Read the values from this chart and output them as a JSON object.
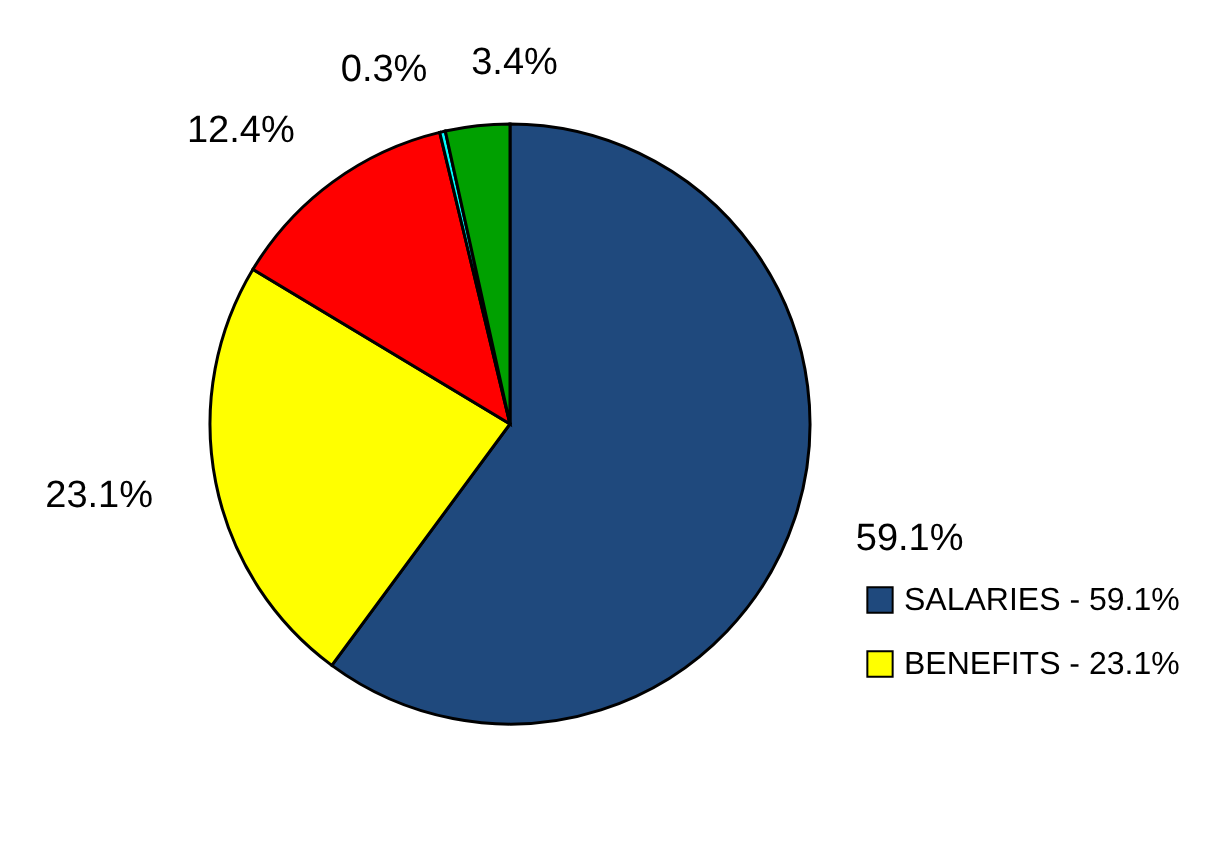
{
  "chart_data": {
    "type": "pie",
    "categories": [
      "SALARIES - 59.1%",
      "BENEFITS - 23.1%",
      null,
      null,
      null
    ],
    "values": [
      59.1,
      23.1,
      12.4,
      0.3,
      3.4
    ],
    "colors": [
      "#1f497d",
      "#ffff00",
      "#ff0000",
      "#00ffff",
      "#00a000"
    ],
    "value_labels": [
      "59.1%",
      "23.1%",
      "12.4%",
      "0.3%",
      "3.4%"
    ],
    "legend": "bottom right"
  }
}
